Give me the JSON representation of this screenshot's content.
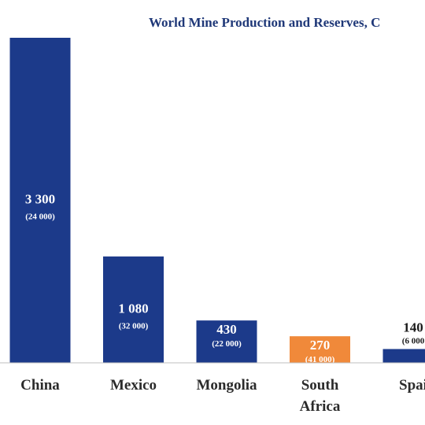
{
  "chart_data": {
    "type": "bar",
    "title": "World Mine Production and Reserves, C",
    "categories": [
      "China",
      "Mexico",
      "Mongolia",
      "South Africa",
      "Spai"
    ],
    "values": [
      3300,
      1080,
      430,
      270,
      140
    ],
    "value_labels": [
      "3 300",
      "1 080",
      "430",
      "270",
      "140"
    ],
    "sub_labels": [
      "(24 000)",
      "(32 000)",
      "(22 000)",
      "(41 000)",
      "(6 000"
    ],
    "colors": [
      "#1c3a8a",
      "#1c3a8a",
      "#1c3a8a",
      "#f0893a",
      "#1c3a8a"
    ],
    "ylim": [
      0,
      3300
    ],
    "xlabel": "",
    "ylabel": "",
    "grid": false,
    "legend": "none"
  }
}
